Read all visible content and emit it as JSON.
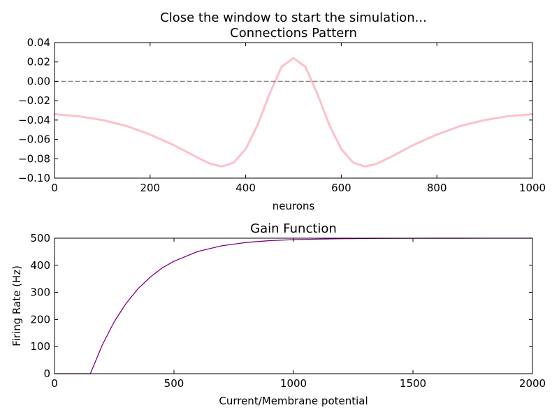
{
  "figure": {
    "suptitle": "Close the window to start the simulation..."
  },
  "chart_data": [
    {
      "type": "line",
      "title": "Connections Pattern",
      "xlabel": "neurons",
      "ylabel": "",
      "xlim": [
        0,
        1000
      ],
      "ylim": [
        -0.1,
        0.04
      ],
      "x_ticks": [
        0,
        200,
        400,
        600,
        800,
        1000
      ],
      "x_tick_labels": [
        "0",
        "200",
        "400",
        "600",
        "800",
        "1000"
      ],
      "y_ticks": [
        -0.1,
        -0.08,
        -0.06,
        -0.04,
        -0.02,
        0.0,
        0.02,
        0.04
      ],
      "y_tick_labels": [
        "−0.10",
        "−0.08",
        "−0.06",
        "−0.04",
        "−0.02",
        "0.00",
        "0.02",
        "0.04"
      ],
      "grid": false,
      "series": [
        {
          "color": "#ffc0cb",
          "style": "solid",
          "x": [
            0,
            50,
            100,
            150,
            200,
            250,
            300,
            325,
            350,
            375,
            400,
            425,
            450,
            475,
            500,
            525,
            550,
            575,
            600,
            625,
            650,
            675,
            700,
            750,
            800,
            850,
            900,
            950,
            1000
          ],
          "y": [
            -0.034,
            -0.036,
            -0.04,
            -0.046,
            -0.055,
            -0.066,
            -0.079,
            -0.085,
            -0.088,
            -0.084,
            -0.07,
            -0.045,
            -0.013,
            0.015,
            0.024,
            0.015,
            -0.013,
            -0.045,
            -0.07,
            -0.084,
            -0.088,
            -0.085,
            -0.079,
            -0.066,
            -0.055,
            -0.046,
            -0.04,
            -0.036,
            -0.034
          ]
        },
        {
          "color": "#808080",
          "style": "dashed",
          "x": [
            0,
            1000
          ],
          "y": [
            0,
            0
          ]
        }
      ]
    },
    {
      "type": "line",
      "title": "Gain Function",
      "xlabel": "Current/Membrane potential",
      "ylabel": "Firing Rate (Hz)",
      "xlim": [
        0,
        2000
      ],
      "ylim": [
        0,
        500
      ],
      "x_ticks": [
        0,
        500,
        1000,
        1500,
        2000
      ],
      "x_tick_labels": [
        "0",
        "500",
        "1000",
        "1500",
        "2000"
      ],
      "y_ticks": [
        0,
        100,
        200,
        300,
        400,
        500
      ],
      "y_tick_labels": [
        "0",
        "100",
        "200",
        "300",
        "400",
        "500"
      ],
      "grid": false,
      "series": [
        {
          "color": "#800080",
          "style": "solid",
          "x": [
            0,
            150,
            200,
            250,
            300,
            350,
            400,
            450,
            500,
            600,
            700,
            800,
            900,
            1000,
            1100,
            1200,
            1300,
            1400,
            1500,
            1600,
            1700,
            1800,
            1900,
            2000
          ],
          "y": [
            0,
            0,
            106,
            192,
            260,
            314,
            356,
            390,
            415,
            451,
            472,
            484,
            491,
            494.5,
            496.5,
            498,
            499,
            499.5,
            499.7,
            499.8,
            499.9,
            500,
            500,
            500
          ]
        }
      ]
    }
  ]
}
